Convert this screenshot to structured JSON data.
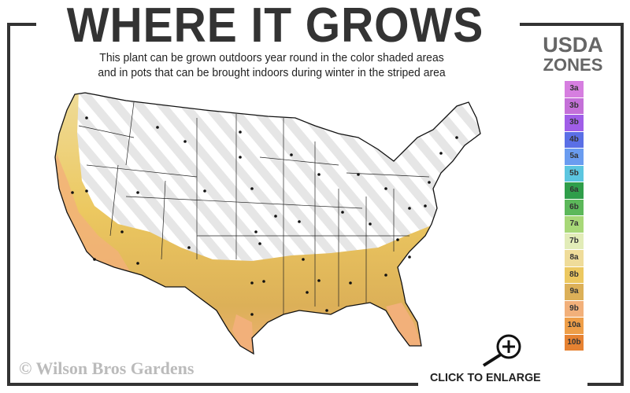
{
  "header": {
    "title": "WHERE IT GROWS",
    "subtitle_line1": "This plant can be grown outdoors year round in the color shaded areas",
    "subtitle_line2": "and in pots that can be brought indoors during winter in the striped area"
  },
  "legend": {
    "title_line1": "USDA",
    "title_line2": "ZONES",
    "zones": [
      {
        "label": "3a",
        "color": "#d67ee0"
      },
      {
        "label": "3b",
        "color": "#c470d8"
      },
      {
        "label": "3b",
        "color": "#a05ee8"
      },
      {
        "label": "4b",
        "color": "#5a6fe6"
      },
      {
        "label": "5a",
        "color": "#6a9cf0"
      },
      {
        "label": "5b",
        "color": "#5cc6e0"
      },
      {
        "label": "6a",
        "color": "#2f9e4a"
      },
      {
        "label": "6b",
        "color": "#5cb85a"
      },
      {
        "label": "7a",
        "color": "#a8d878"
      },
      {
        "label": "7b",
        "color": "#e2ecb8"
      },
      {
        "label": "8a",
        "color": "#efdc9a"
      },
      {
        "label": "8b",
        "color": "#ecc860"
      },
      {
        "label": "9a",
        "color": "#dcb058"
      },
      {
        "label": "9b",
        "color": "#f2b07a"
      },
      {
        "label": "10a",
        "color": "#ee9e48"
      },
      {
        "label": "10b",
        "color": "#e68232"
      }
    ]
  },
  "map": {
    "stripe_color": "#e6e6e6",
    "shaded_region_colors": [
      "#ecc860",
      "#dcb058",
      "#f2b07a",
      "#e68232"
    ]
  },
  "footer": {
    "copyright": "© Wilson Bros Gardens",
    "enlarge_label": "CLICK TO ENLARGE"
  }
}
